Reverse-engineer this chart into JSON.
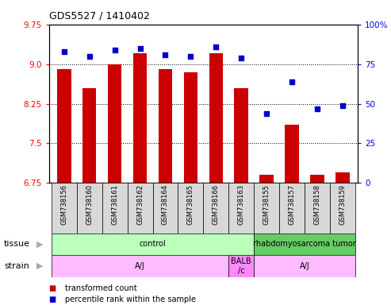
{
  "title": "GDS5527 / 1410402",
  "samples": [
    "GSM738156",
    "GSM738160",
    "GSM738161",
    "GSM738162",
    "GSM738164",
    "GSM738165",
    "GSM738166",
    "GSM738163",
    "GSM738155",
    "GSM738157",
    "GSM738158",
    "GSM738159"
  ],
  "transformed_count": [
    8.9,
    8.55,
    9.0,
    9.2,
    8.9,
    8.85,
    9.2,
    8.55,
    6.9,
    7.85,
    6.9,
    6.95
  ],
  "percentile_rank": [
    83,
    80,
    84,
    85,
    81,
    80,
    86,
    79,
    44,
    64,
    47,
    49
  ],
  "ylim_left": [
    6.75,
    9.75
  ],
  "ylim_right": [
    0,
    100
  ],
  "yticks_left": [
    6.75,
    7.5,
    8.25,
    9.0,
    9.75
  ],
  "yticks_right": [
    0,
    25,
    50,
    75,
    100
  ],
  "bar_color": "#cc0000",
  "dot_color": "#0000cc",
  "bar_bottom": 6.75,
  "tissue_groups": [
    {
      "label": "control",
      "start": 0,
      "end": 8,
      "color": "#bbffbb"
    },
    {
      "label": "rhabdomyosarcoma tumor",
      "start": 8,
      "end": 12,
      "color": "#66cc66"
    }
  ],
  "strain_groups": [
    {
      "label": "A/J",
      "start": 0,
      "end": 7,
      "color": "#ffbbff"
    },
    {
      "label": "BALB\n/c",
      "start": 7,
      "end": 8,
      "color": "#ff88ff"
    },
    {
      "label": "A/J",
      "start": 8,
      "end": 12,
      "color": "#ffbbff"
    }
  ],
  "legend_items": [
    {
      "color": "#cc0000",
      "label": "transformed count"
    },
    {
      "color": "#0000cc",
      "label": "percentile rank within the sample"
    }
  ],
  "figsize": [
    4.93,
    3.84
  ],
  "dpi": 100
}
